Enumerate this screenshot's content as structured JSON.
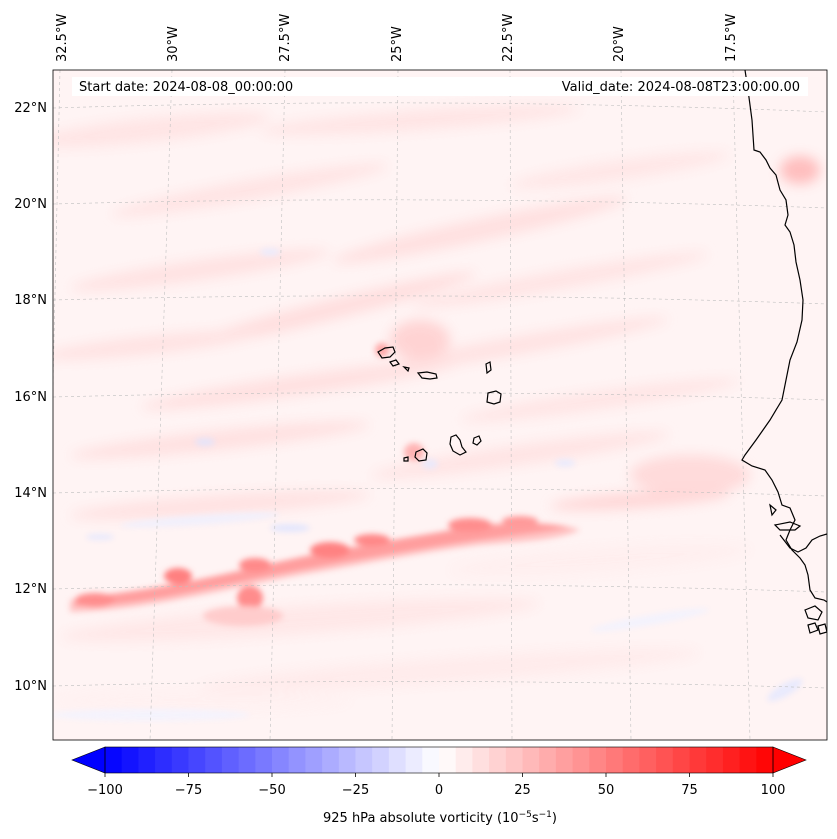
{
  "header": {
    "start_date": "Start date: 2024-08-08_00:00:00",
    "valid_date": "Valid_date: 2024-08-08T23:00:00.00"
  },
  "map": {
    "lon_labels": [
      "32.5°W",
      "30°W",
      "27.5°W",
      "25°W",
      "22.5°W",
      "20°W",
      "17.5°W"
    ],
    "lat_labels": [
      "22°N",
      "20°N",
      "18°N",
      "16°N",
      "14°N",
      "12°N",
      "10°N"
    ]
  },
  "colorbar": {
    "ticks": [
      "−100",
      "−75",
      "−50",
      "−25",
      "0",
      "25",
      "50",
      "75",
      "100"
    ],
    "label_main": "925 hPa absolute vorticity (10",
    "label_exp1": "−5",
    "label_mid": "s",
    "label_exp2": "−1",
    "label_end": ")",
    "min": -100,
    "max": 100,
    "neg_color": "#0000ff",
    "pos_color": "#ff0000"
  }
}
